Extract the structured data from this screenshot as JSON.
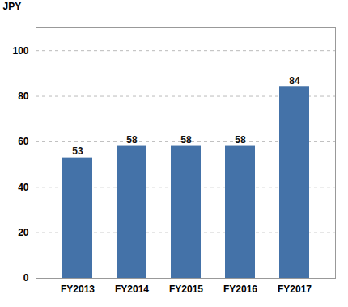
{
  "chart_data": {
    "type": "bar",
    "categories": [
      "FY2013",
      "FY2014",
      "FY2015",
      "FY2016",
      "FY2017"
    ],
    "values": [
      53,
      58,
      58,
      58,
      84
    ],
    "color": "#4472a8",
    "ylabel": "JPY",
    "ylim": [
      0,
      110
    ],
    "yticks": [
      0,
      20,
      40,
      60,
      80,
      100
    ],
    "grid": true,
    "data_labels": true
  }
}
